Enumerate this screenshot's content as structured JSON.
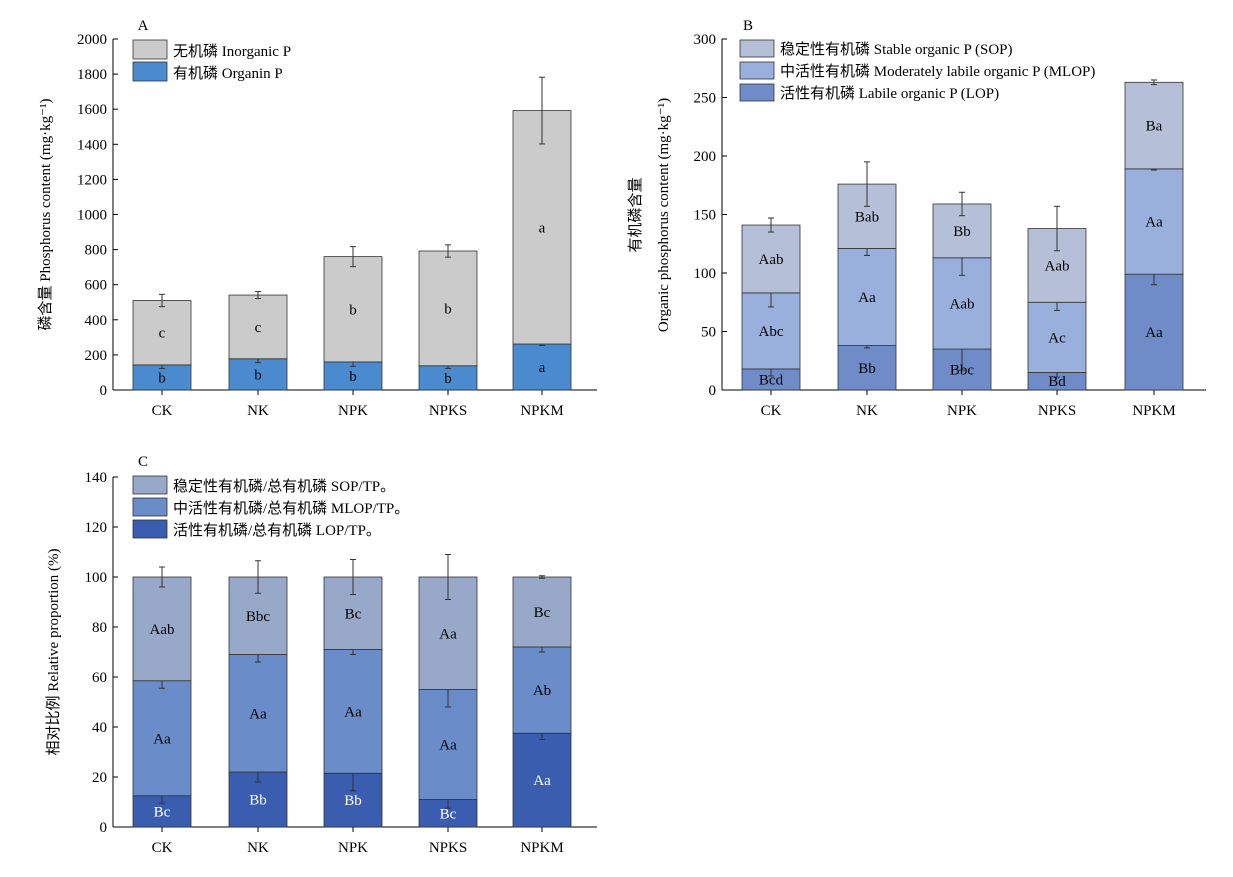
{
  "categories": [
    "CK",
    "NK",
    "NPK",
    "NPKS",
    "NPKM"
  ],
  "chart_data": [
    {
      "panel_label": "A",
      "type": "bar",
      "stacked": true,
      "ylabel": "磷含量 Phosphorus content (mg·kg⁻¹)",
      "ylim": [
        0,
        2000
      ],
      "ytick_step": 200,
      "legend_position": "top-left",
      "categories": [
        "CK",
        "NK",
        "NPK",
        "NPKS",
        "NPKM"
      ],
      "series": [
        {
          "name": "有机磷 Organin P",
          "color": "#4a8bd0",
          "values": [
            143,
            178,
            160,
            138,
            262
          ],
          "errors": [
            20,
            22,
            25,
            15,
            8
          ],
          "labels": [
            "b",
            "b",
            "b",
            "b",
            "a"
          ],
          "label_color": "#000000"
        },
        {
          "name": "无机磷 Inorganic P",
          "color": "#cbcbcb",
          "values": [
            367,
            363,
            600,
            654,
            1330
          ],
          "errors": [
            35,
            20,
            57,
            35,
            190
          ],
          "labels": [
            "c",
            "c",
            "b",
            "b",
            "a"
          ],
          "label_color": "#000000"
        }
      ]
    },
    {
      "panel_label": "B",
      "type": "bar",
      "stacked": true,
      "ylabel_cn": "有机磷含量",
      "ylabel_en": "Organic phosphorus content (mg·kg⁻¹)",
      "ylim": [
        0,
        300
      ],
      "ytick_step": 50,
      "legend_position": "top-left",
      "categories": [
        "CK",
        "NK",
        "NPK",
        "NPKS",
        "NPKM"
      ],
      "series": [
        {
          "name": "活性有机磷 Labile organic P (LOP)",
          "color": "#6f8bc8",
          "values": [
            18,
            38,
            35,
            15,
            99
          ],
          "errors": [
            6,
            2,
            18,
            4,
            9
          ],
          "labels": [
            "Bcd",
            "Bb",
            "Bbc",
            "Bd",
            "Aa"
          ],
          "label_color": "#000000"
        },
        {
          "name": "中活性有机磷 Moderately labile organic P (MLOP)",
          "color": "#99b0dc",
          "values": [
            65,
            83,
            78,
            60,
            90
          ],
          "errors": [
            12,
            6,
            15,
            7,
            1
          ],
          "labels": [
            "Abc",
            "Aa",
            "Aab",
            "Ac",
            "Aa"
          ],
          "label_color": "#000000"
        },
        {
          "name": "稳定性有机磷 Stable organic P (SOP)",
          "color": "#b5c0d8",
          "values": [
            58,
            55,
            46,
            63,
            74
          ],
          "errors": [
            6,
            19,
            10,
            19,
            2
          ],
          "labels": [
            "Aab",
            "Bab",
            "Bb",
            "Aab",
            "Ba"
          ],
          "label_color": "#000000"
        }
      ]
    },
    {
      "panel_label": "C",
      "type": "bar",
      "stacked": true,
      "ylabel": "相对比例 Relative proportion (%)",
      "ylim": [
        0,
        140
      ],
      "ytick_step": 20,
      "legend_position": "top-left",
      "categories": [
        "CK",
        "NK",
        "NPK",
        "NPKS",
        "NPKM"
      ],
      "series": [
        {
          "name": "活性有机磷/总有机磷  LOP/TP。",
          "color": "#3a5db0",
          "values": [
            12.5,
            22,
            21.5,
            11,
            37.5
          ],
          "errors": [
            3,
            4,
            7,
            3.5,
            2.5
          ],
          "labels": [
            "Bc",
            "Bb",
            "Bb",
            "Bc",
            "Aa"
          ],
          "label_color": "#ffffff"
        },
        {
          "name": "中活性有机磷/总有机磷  MLOP/TP。",
          "color": "#6a8cc8",
          "values": [
            46,
            47,
            49.5,
            44,
            34.5
          ],
          "errors": [
            3,
            3,
            2,
            7,
            2
          ],
          "labels": [
            "Aa",
            "Aa",
            "Aa",
            "Aa",
            "Ab"
          ],
          "label_color": "#000000"
        },
        {
          "name": "稳定性有机磷/总有机磷  SOP/TP。",
          "color": "#97a8c8",
          "values": [
            41.5,
            31,
            29,
            45,
            28
          ],
          "errors": [
            4,
            6.5,
            7,
            9,
            0.5
          ],
          "labels": [
            "Aab",
            "Bbc",
            "Bc",
            "Aa",
            "Bc"
          ],
          "label_color": "#000000"
        }
      ]
    }
  ]
}
